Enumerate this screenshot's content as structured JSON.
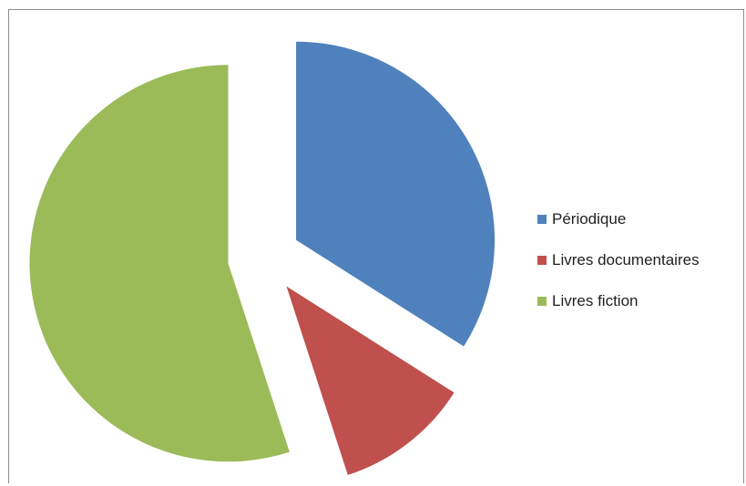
{
  "chart_data": {
    "type": "pie",
    "categories": [
      "Périodique",
      "Livres documentaires",
      "Livres fiction"
    ],
    "values": [
      34,
      11,
      55
    ],
    "colors": [
      "#4f81bd",
      "#c0504d",
      "#9bbb59"
    ],
    "legend_position": "right",
    "exploded": true
  }
}
